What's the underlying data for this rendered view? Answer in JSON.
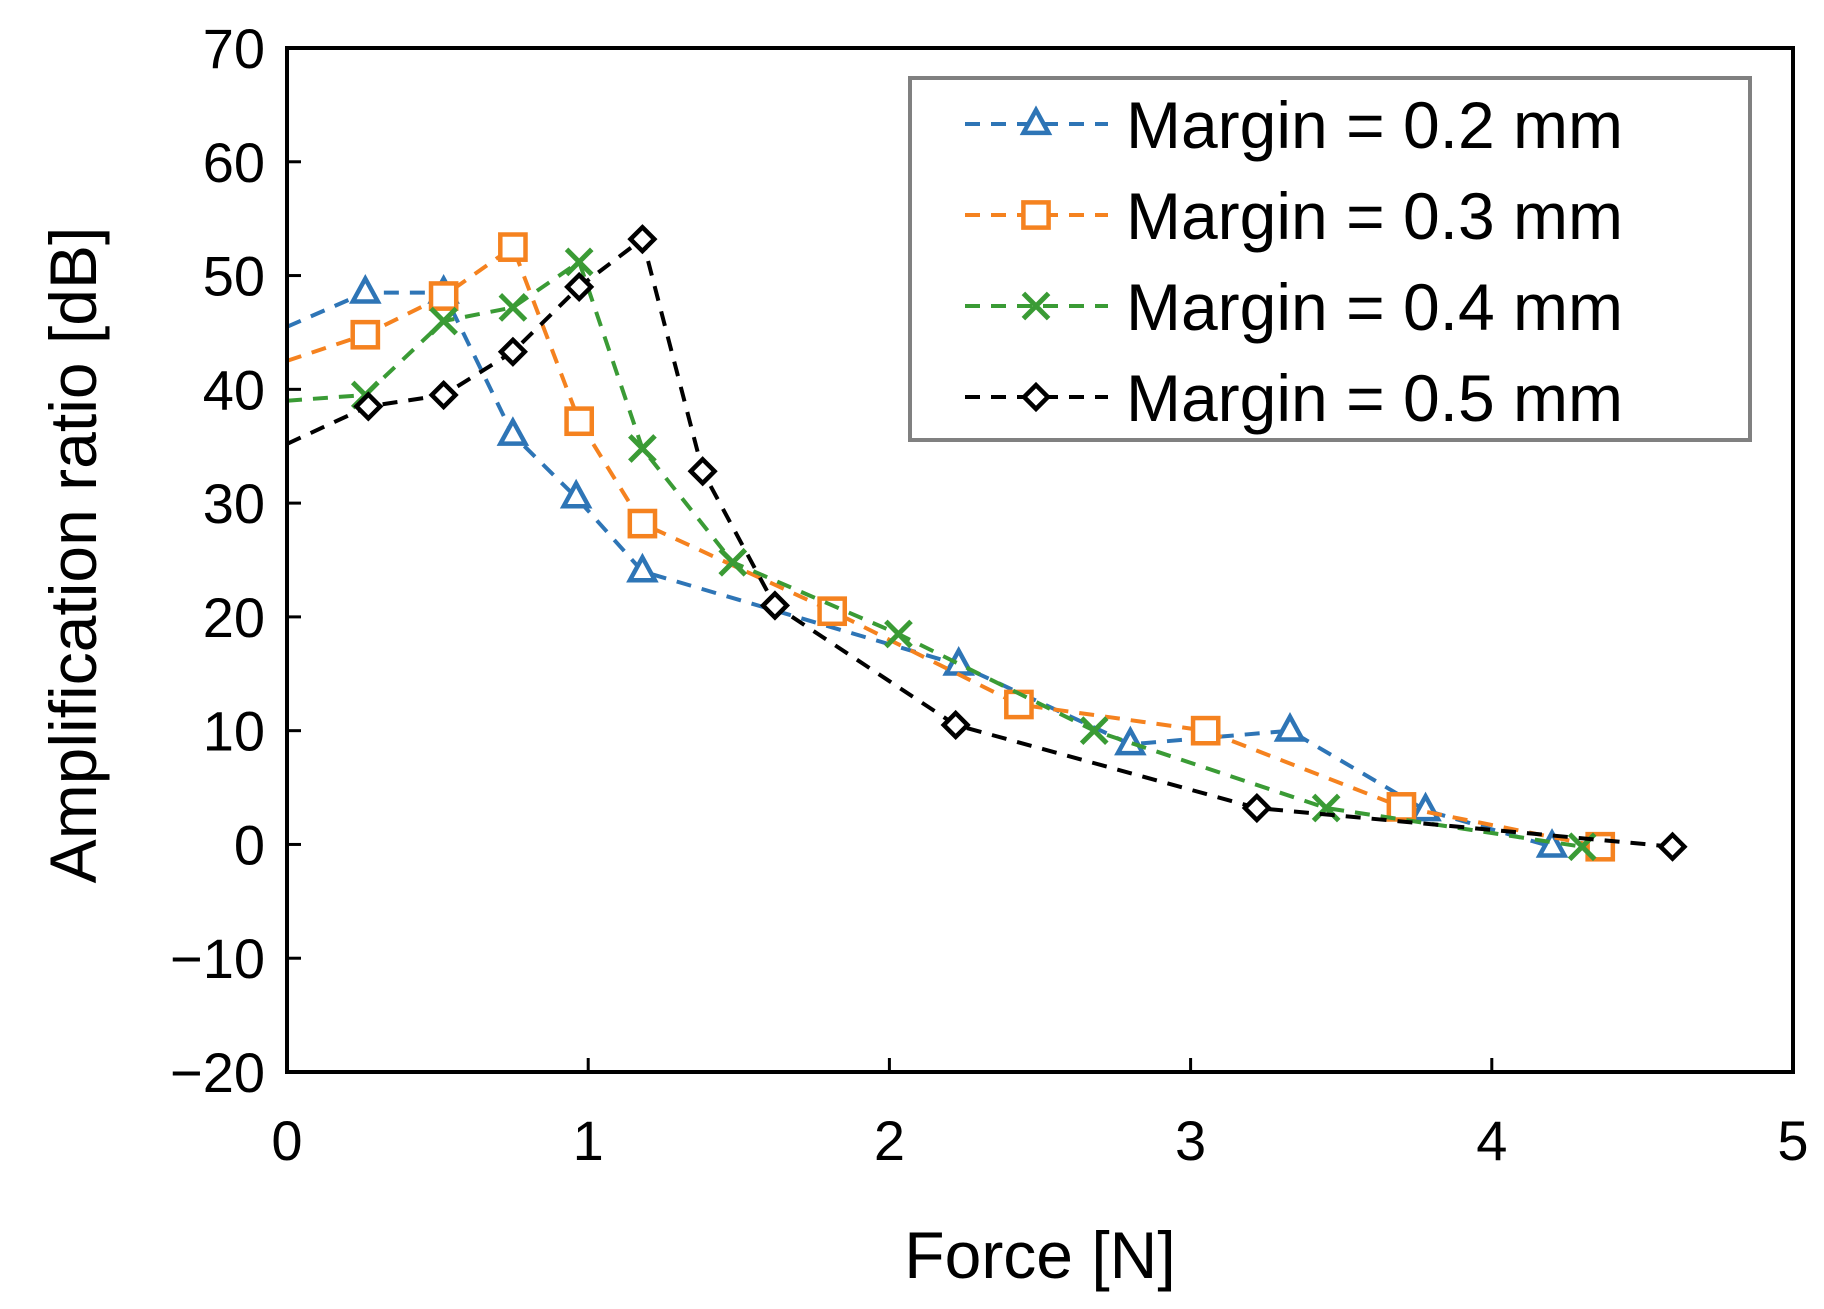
{
  "chart_data": {
    "type": "line",
    "title": "",
    "xlabel": "Force [N]",
    "ylabel": "Amplification ratio [dB]",
    "xlim": [
      0,
      5
    ],
    "ylim": [
      -20,
      70
    ],
    "xticks": [
      0,
      1,
      2,
      3,
      4,
      5
    ],
    "xtick_labels": [
      "0",
      "1",
      "2",
      "3",
      "4",
      "5"
    ],
    "yticks": [
      -20,
      -10,
      0,
      10,
      20,
      30,
      40,
      50,
      60,
      70
    ],
    "ytick_labels": [
      "−20",
      "−10",
      "0",
      "10",
      "20",
      "30",
      "40",
      "50",
      "60",
      "70"
    ],
    "grid": false,
    "legend_position": "top-right",
    "series": [
      {
        "name": "Margin = 0.2 mm",
        "color": "#2E75B6",
        "marker": "triangle",
        "line_style": "dashed",
        "start_value": [
          0,
          45.5
        ],
        "x": [
          0.26,
          0.52,
          0.75,
          0.96,
          1.18,
          2.23,
          2.8,
          3.33,
          3.78,
          4.2
        ],
        "y": [
          48.5,
          48.5,
          36.0,
          30.5,
          24.0,
          15.8,
          8.8,
          10.0,
          3.0,
          -0.2
        ]
      },
      {
        "name": "Margin = 0.3 mm",
        "color": "#F5821F",
        "marker": "square",
        "line_style": "dashed",
        "start_value": [
          0,
          42.5
        ],
        "x": [
          0.26,
          0.52,
          0.75,
          0.97,
          1.18,
          1.81,
          2.43,
          3.05,
          3.7,
          4.36
        ],
        "y": [
          44.8,
          48.2,
          52.5,
          37.2,
          28.2,
          20.5,
          12.3,
          10.0,
          3.3,
          -0.2
        ]
      },
      {
        "name": "Margin = 0.4 mm",
        "color": "#3A9B35",
        "marker": "x",
        "line_style": "dashed",
        "start_value": [
          0,
          39.0
        ],
        "x": [
          0.26,
          0.52,
          0.75,
          0.97,
          1.18,
          1.48,
          2.03,
          2.68,
          3.45,
          4.3
        ],
        "y": [
          39.5,
          46.0,
          47.2,
          51.2,
          34.8,
          24.8,
          18.5,
          10.0,
          3.2,
          -0.2
        ]
      },
      {
        "name": "Margin = 0.5 mm",
        "color": "#000000",
        "marker": "diamond",
        "line_style": "dashed",
        "start_value": [
          0,
          35.2
        ],
        "x": [
          0.27,
          0.52,
          0.75,
          0.97,
          1.18,
          1.38,
          1.62,
          2.22,
          3.22,
          4.6
        ],
        "y": [
          38.5,
          39.5,
          43.3,
          49.0,
          53.2,
          32.8,
          21.0,
          10.5,
          3.2,
          -0.2
        ]
      }
    ]
  }
}
